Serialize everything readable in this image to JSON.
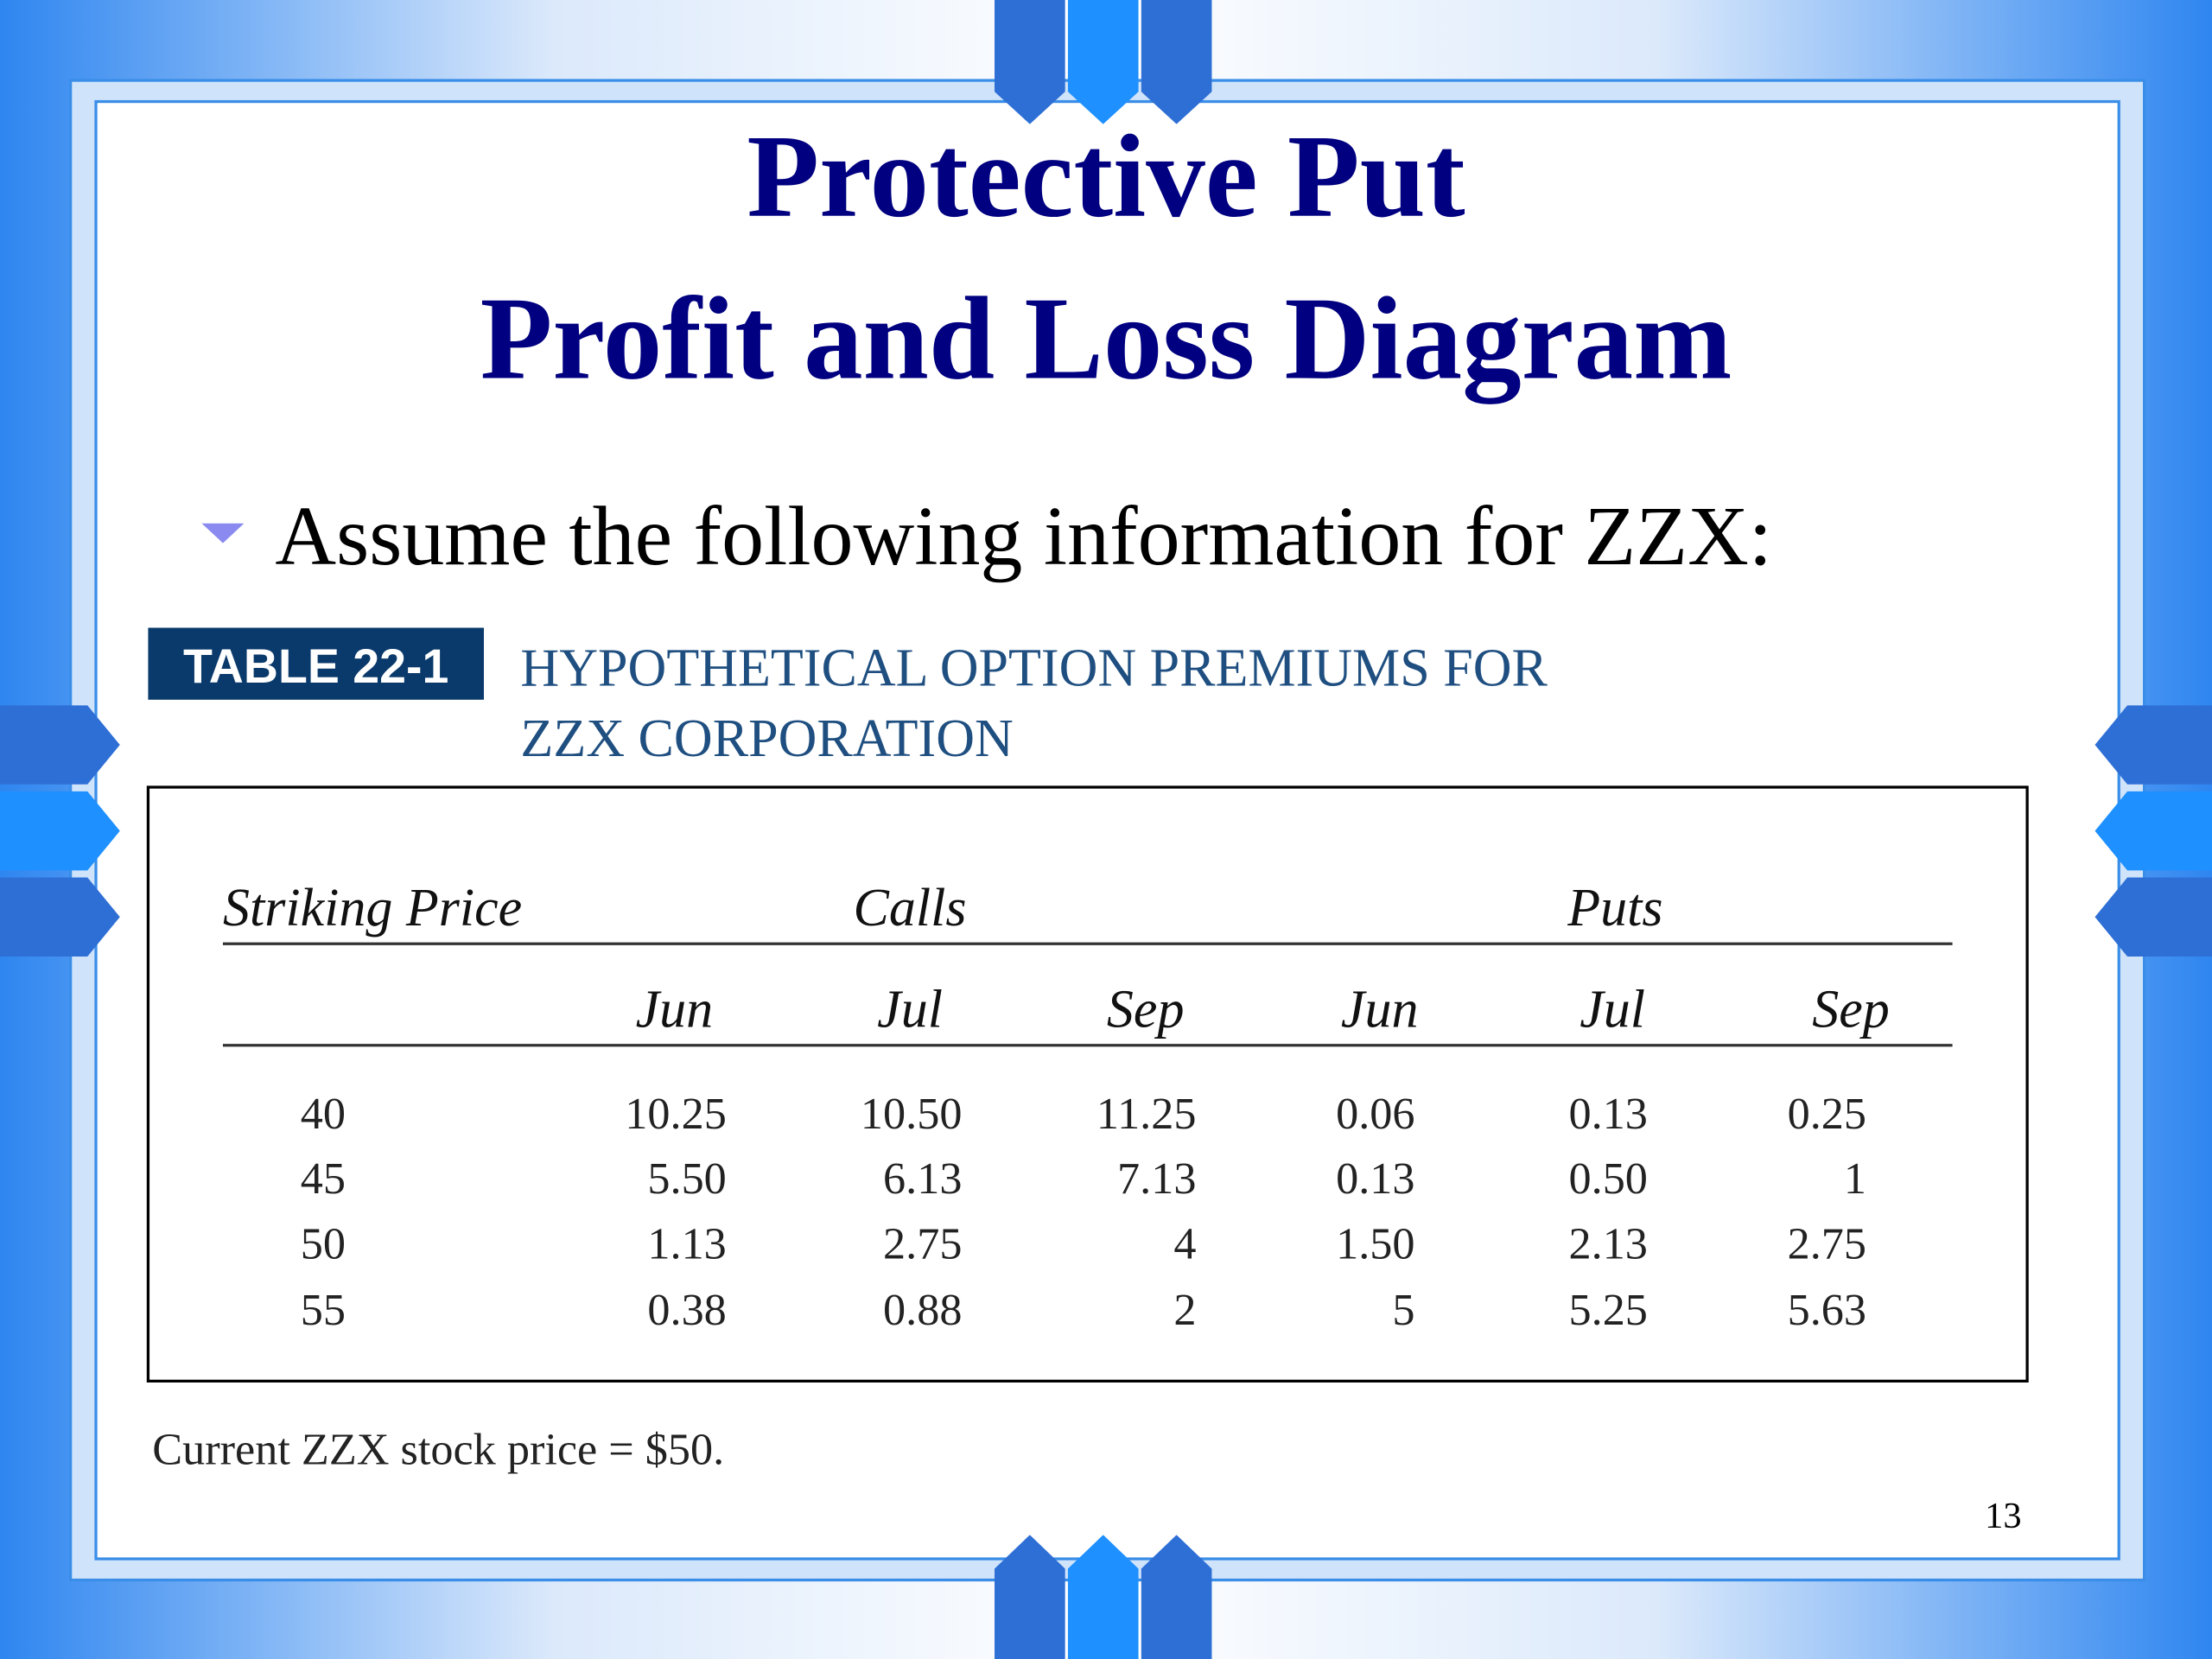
{
  "title": [
    "Protective Put",
    "Profit and Loss Diagram"
  ],
  "bullet": "Assume the following information for ZZX:",
  "table": {
    "label": "TABLE 22-1",
    "caption": [
      "HYPOTHETICAL OPTION PREMIUMS FOR",
      "ZZX CORPORATION"
    ],
    "group_headers": [
      "Striking Price",
      "Calls",
      "Puts"
    ],
    "column_headers": [
      "Jun",
      "Jul",
      "Sep",
      "Jun",
      "Jul",
      "Sep"
    ],
    "rows": [
      [
        "40",
        "10.25",
        "10.50",
        "11.25",
        "0.06",
        "0.13",
        "0.25"
      ],
      [
        "45",
        "5.50",
        "6.13",
        "7.13",
        "0.13",
        "0.50",
        "1"
      ],
      [
        "50",
        "1.13",
        "2.75",
        "4",
        "1.50",
        "2.13",
        "2.75"
      ],
      [
        "55",
        "0.38",
        "0.88",
        "2",
        "5",
        "5.25",
        "5.63"
      ]
    ]
  },
  "footnote": "Current ZZX stock price = $50.",
  "page_number": "13"
}
